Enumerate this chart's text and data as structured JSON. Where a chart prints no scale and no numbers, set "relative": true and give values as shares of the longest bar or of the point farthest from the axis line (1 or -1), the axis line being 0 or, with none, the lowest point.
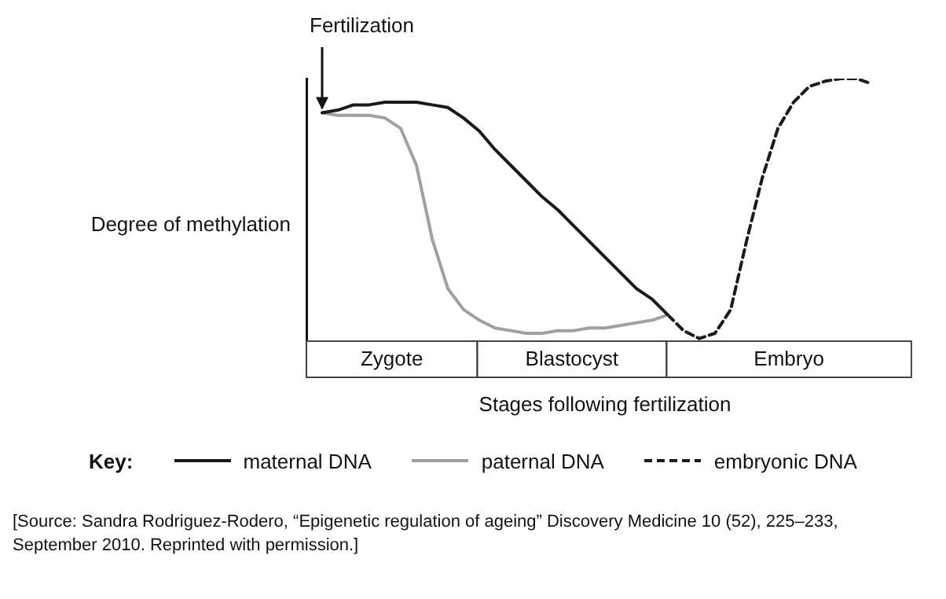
{
  "chart_data": {
    "type": "line",
    "relative": true,
    "ylabel": "Degree of methylation",
    "xlabel": "Stages following fertilization",
    "legend": "bottom",
    "legend_title": "Key:",
    "marker": "none",
    "categories": [
      null,
      null,
      null,
      null,
      null,
      null,
      null,
      null,
      null,
      null,
      null,
      null,
      null,
      null,
      null,
      null,
      null,
      null,
      null,
      null,
      null,
      null,
      null,
      null,
      null,
      null,
      null,
      null,
      null,
      null,
      null,
      null,
      null,
      null,
      null,
      null,
      null,
      null,
      null
    ],
    "series": [
      {
        "name": "maternal DNA",
        "color": "#1a1a1a",
        "line_style": "solid",
        "values": [
          null,
          0.87,
          0.88,
          0.9,
          0.9,
          0.91,
          0.91,
          0.91,
          0.9,
          0.89,
          0.85,
          0.8,
          0.73,
          0.67,
          0.61,
          0.55,
          0.5,
          0.44,
          0.38,
          0.32,
          0.26,
          0.2,
          0.16,
          0.1,
          null,
          null,
          null,
          null,
          null,
          null,
          null,
          null,
          null,
          null,
          null,
          null,
          null,
          null,
          null
        ]
      },
      {
        "name": "paternal DNA",
        "color": "#a0a0a0",
        "line_style": "solid",
        "values": [
          null,
          0.87,
          0.86,
          0.86,
          0.86,
          0.85,
          0.81,
          0.67,
          0.39,
          0.2,
          0.12,
          0.08,
          0.05,
          0.04,
          0.03,
          0.03,
          0.04,
          0.04,
          0.05,
          0.05,
          0.06,
          0.07,
          0.08,
          0.1,
          null,
          null,
          null,
          null,
          null,
          null,
          null,
          null,
          null,
          null,
          null,
          null,
          null,
          null,
          null
        ]
      },
      {
        "name": "embryonic DNA",
        "color": "#1a1a1a",
        "line_style": "dashed",
        "values": [
          null,
          null,
          null,
          null,
          null,
          null,
          null,
          null,
          null,
          null,
          null,
          null,
          null,
          null,
          null,
          null,
          null,
          null,
          null,
          null,
          null,
          null,
          null,
          0.1,
          0.04,
          0.01,
          0.03,
          0.12,
          0.38,
          0.62,
          0.81,
          0.91,
          0.97,
          0.99,
          1,
          1,
          0.98,
          null,
          null
        ]
      }
    ],
    "annotations": [
      "Fertilization",
      "Zygote",
      "Blastocyst",
      "Embryo",
      "[Source: Sandra Rodriguez-Rodero, “Epigenetic regulation of ageing” Discovery Medicine 10 (52), 225–233, September 2010. Reprinted with permission.]"
    ]
  }
}
